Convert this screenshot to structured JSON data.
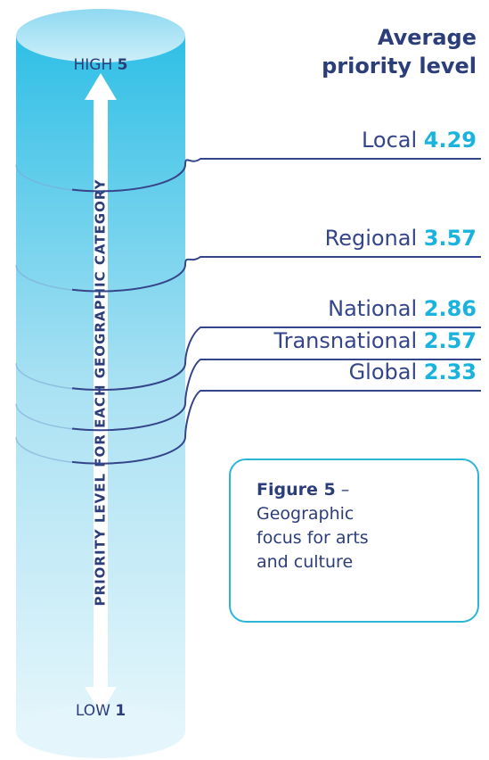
{
  "chart_data": {
    "type": "cylinder-scale",
    "title": "Average priority level",
    "axis_label": "PRIORITY LEVEL FOR EACH GEOGRAPHIC CATEGORY",
    "high_label": "HIGH",
    "low_label": "LOW",
    "ylim": [
      1,
      5
    ],
    "yticks": [
      1,
      5
    ],
    "categories": [
      "Local",
      "Regional",
      "National",
      "Transnational",
      "Global"
    ],
    "values": [
      4.29,
      3.57,
      2.86,
      2.57,
      2.33
    ],
    "color": "#1ab3dd",
    "line_color": "#34458a",
    "figure_label": "Figure 5",
    "caption": "– Geographic focus for arts and culture"
  }
}
